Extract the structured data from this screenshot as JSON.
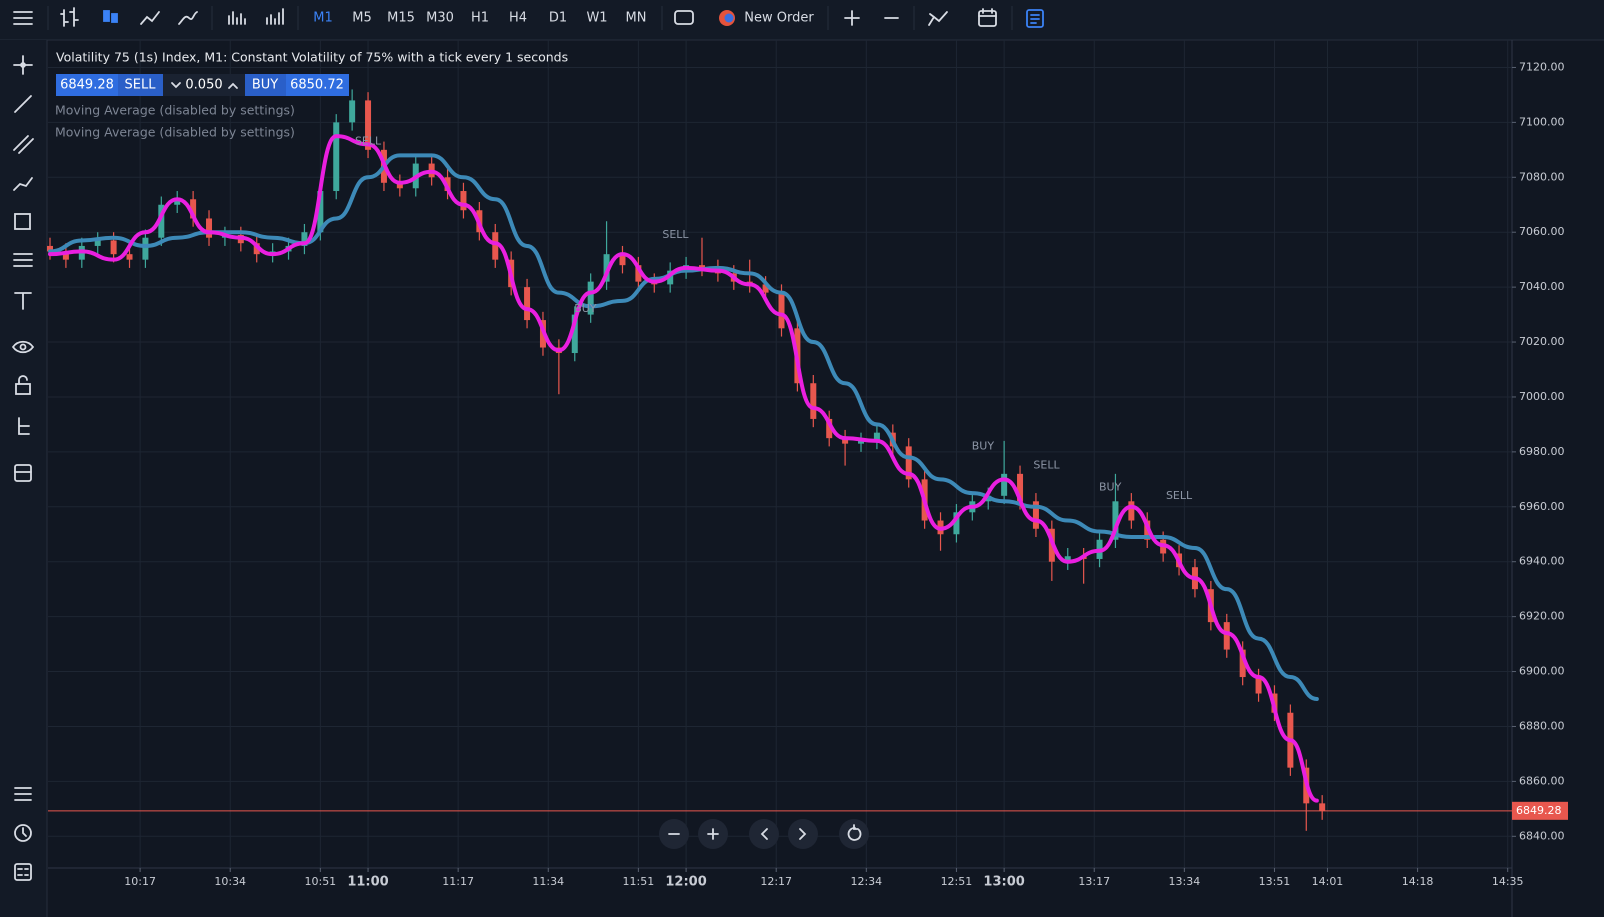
{
  "toolbar": {
    "timeframes": [
      "M1",
      "M5",
      "M15",
      "M30",
      "H1",
      "H4",
      "D1",
      "W1",
      "MN"
    ],
    "active_timeframe": "M1",
    "new_order": "New Order"
  },
  "trade_panel": {
    "sell_price": "6849.28",
    "sell": "SELL",
    "lot": "0.050",
    "buy": "BUY",
    "buy_price": "6850.72"
  },
  "chart_data": {
    "type": "candlestick",
    "title": "Volatility 75 (1s) Index, M1: Constant Volatility of 75% with a tick every 1 seconds",
    "up_color": "#3fa89c",
    "down_color": "#e8574e",
    "grid": true,
    "xlim": [
      "10:00",
      "14:36"
    ],
    "ylim": [
      6827,
      7130
    ],
    "xticks": [
      "10:17",
      "10:34",
      "10:51",
      "11:00",
      "11:17",
      "11:34",
      "11:51",
      "12:00",
      "12:17",
      "12:34",
      "12:51",
      "13:00",
      "13:17",
      "13:34",
      "13:51",
      "14:01",
      "14:18",
      "14:35"
    ],
    "yticks": [
      {
        "value": 6840,
        "label": "6840.00"
      },
      {
        "value": 6860,
        "label": "6860.00"
      },
      {
        "value": 6880,
        "label": "6880.00"
      },
      {
        "value": 6900,
        "label": "6900.00"
      },
      {
        "value": 6920,
        "label": "6920.00"
      },
      {
        "value": 6940,
        "label": "6940.00"
      },
      {
        "value": 6960,
        "label": "6960.00"
      },
      {
        "value": 6980,
        "label": "6980.00"
      },
      {
        "value": 7000,
        "label": "7000.00"
      },
      {
        "value": 7020,
        "label": "7020.00"
      },
      {
        "value": 7040,
        "label": "7040.00"
      },
      {
        "value": 7060,
        "label": "7060.00"
      },
      {
        "value": 7080,
        "label": "7080.00"
      },
      {
        "value": 7100,
        "label": "7100.00"
      },
      {
        "value": 7120,
        "label": "7120.00"
      }
    ],
    "current_price": 6849.28,
    "current_price_color": "#e8574e",
    "x": [
      "10:00",
      "10:03",
      "10:06",
      "10:09",
      "10:12",
      "10:15",
      "10:18",
      "10:21",
      "10:24",
      "10:27",
      "10:30",
      "10:33",
      "10:36",
      "10:39",
      "10:42",
      "10:45",
      "10:48",
      "10:51",
      "10:54",
      "10:57",
      "11:00",
      "11:03",
      "11:06",
      "11:09",
      "11:12",
      "11:15",
      "11:18",
      "11:21",
      "11:24",
      "11:27",
      "11:30",
      "11:33",
      "11:36",
      "11:39",
      "11:42",
      "11:45",
      "11:48",
      "11:51",
      "11:54",
      "11:57",
      "12:00",
      "12:03",
      "12:06",
      "12:09",
      "12:12",
      "12:15",
      "12:18",
      "12:21",
      "12:24",
      "12:27",
      "12:30",
      "12:33",
      "12:36",
      "12:39",
      "12:42",
      "12:45",
      "12:48",
      "12:51",
      "12:54",
      "12:57",
      "13:00",
      "13:03",
      "13:06",
      "13:09",
      "13:12",
      "13:15",
      "13:18",
      "13:21",
      "13:24",
      "13:27",
      "13:30",
      "13:33",
      "13:36",
      "13:39",
      "13:42",
      "13:45",
      "13:48",
      "13:51",
      "13:54",
      "13:57",
      "14:00"
    ],
    "open": [
      7055,
      7053,
      7050,
      7055,
      7057,
      7052,
      7050,
      7058,
      7070,
      7072,
      7065,
      7058,
      7059,
      7056,
      7052,
      7053,
      7055,
      7060,
      7075,
      7100,
      7108,
      7090,
      7078,
      7076,
      7085,
      7080,
      7075,
      7068,
      7060,
      7050,
      7040,
      7028,
      7018,
      7016,
      7030,
      7042,
      7052,
      7048,
      7042,
      7041,
      7046,
      7048,
      7047,
      7045,
      7042,
      7041,
      7038,
      7025,
      7005,
      6992,
      6985,
      6983,
      6984,
      6987,
      6982,
      6970,
      6955,
      6950,
      6958,
      6962,
      6964,
      6972,
      6962,
      6952,
      6940,
      6942,
      6941,
      6948,
      6962,
      6955,
      6948,
      6943,
      6938,
      6930,
      6918,
      6908,
      6898,
      6892,
      6885,
      6865,
      6852
    ],
    "high": [
      7058,
      7056,
      7058,
      7060,
      7060,
      7055,
      7061,
      7073,
      7075,
      7075,
      7068,
      7062,
      7062,
      7059,
      7056,
      7058,
      7063,
      7078,
      7103,
      7112,
      7111,
      7093,
      7081,
      7088,
      7088,
      7083,
      7078,
      7071,
      7063,
      7053,
      7043,
      7031,
      7021,
      7033,
      7045,
      7064,
      7055,
      7051,
      7045,
      7049,
      7051,
      7058,
      7050,
      7048,
      7050,
      7044,
      7041,
      7028,
      7008,
      6995,
      6988,
      6987,
      6990,
      6990,
      6985,
      6973,
      6958,
      6961,
      6965,
      6967,
      6984,
      6975,
      6965,
      6955,
      6945,
      6945,
      6951,
      6972,
      6965,
      6958,
      6951,
      6946,
      6941,
      6933,
      6921,
      6911,
      6901,
      6895,
      6888,
      6868,
      6855
    ],
    "low": [
      7050,
      7047,
      7047,
      7052,
      7049,
      7047,
      7047,
      7055,
      7067,
      7062,
      7055,
      7055,
      7053,
      7049,
      7049,
      7050,
      7052,
      7057,
      7072,
      7097,
      7087,
      7075,
      7073,
      7073,
      7077,
      7072,
      7065,
      7057,
      7047,
      7037,
      7025,
      7015,
      7001,
      7013,
      7027,
      7039,
      7045,
      7039,
      7038,
      7038,
      7043,
      7044,
      7042,
      7039,
      7038,
      7035,
      7022,
      7002,
      6989,
      6982,
      6975,
      6980,
      6981,
      6979,
      6967,
      6952,
      6944,
      6947,
      6955,
      6959,
      6961,
      6959,
      6949,
      6933,
      6937,
      6932,
      6938,
      6945,
      6952,
      6945,
      6940,
      6935,
      6927,
      6915,
      6905,
      6895,
      6889,
      6882,
      6862,
      6842,
      6846
    ],
    "close": [
      7053,
      7050,
      7055,
      7057,
      7052,
      7050,
      7058,
      7070,
      7072,
      7065,
      7058,
      7059,
      7056,
      7052,
      7053,
      7055,
      7060,
      7075,
      7100,
      7108,
      7090,
      7078,
      7076,
      7085,
      7080,
      7075,
      7068,
      7060,
      7050,
      7040,
      7028,
      7018,
      7016,
      7030,
      7042,
      7052,
      7048,
      7042,
      7041,
      7046,
      7048,
      7047,
      7045,
      7042,
      7041,
      7038,
      7025,
      7005,
      6992,
      6985,
      6983,
      6984,
      6987,
      6982,
      6970,
      6955,
      6950,
      6958,
      6962,
      6964,
      6972,
      6962,
      6952,
      6940,
      6942,
      6941,
      6948,
      6962,
      6955,
      6948,
      6943,
      6938,
      6930,
      6918,
      6908,
      6898,
      6892,
      6885,
      6865,
      6852,
      6849.28
    ],
    "series": [
      {
        "name": "Moving Average (disabled by settings)",
        "color": "#3d8ab8",
        "x": [
          "10:00",
          "10:06",
          "10:12",
          "10:18",
          "10:24",
          "10:30",
          "10:36",
          "10:42",
          "10:48",
          "10:54",
          "11:00",
          "11:06",
          "11:12",
          "11:18",
          "11:24",
          "11:30",
          "11:36",
          "11:42",
          "11:48",
          "11:54",
          "12:00",
          "12:06",
          "12:12",
          "12:18",
          "12:24",
          "12:30",
          "12:36",
          "12:42",
          "12:48",
          "12:54",
          "13:00",
          "13:06",
          "13:12",
          "13:18",
          "13:24",
          "13:30",
          "13:36",
          "13:42",
          "13:48",
          "13:54",
          "13:59"
        ],
        "values": [
          7053,
          7057,
          7058,
          7055,
          7058,
          7060,
          7060,
          7058,
          7056,
          7065,
          7080,
          7088,
          7088,
          7080,
          7072,
          7055,
          7038,
          7033,
          7035,
          7043,
          7046,
          7047,
          7045,
          7038,
          7020,
          7005,
          6990,
          6978,
          6970,
          6965,
          6962,
          6960,
          6955,
          6951,
          6949,
          6949,
          6945,
          6930,
          6912,
          6898,
          6890
        ]
      },
      {
        "name": "Moving Average (disabled by settings)",
        "color": "#ea1fe0",
        "x": [
          "10:00",
          "10:06",
          "10:12",
          "10:18",
          "10:24",
          "10:30",
          "10:36",
          "10:42",
          "10:48",
          "10:54",
          "11:00",
          "11:06",
          "11:12",
          "11:18",
          "11:24",
          "11:30",
          "11:36",
          "11:42",
          "11:48",
          "11:54",
          "12:00",
          "12:06",
          "12:12",
          "12:18",
          "12:24",
          "12:30",
          "12:36",
          "12:42",
          "12:48",
          "12:54",
          "13:00",
          "13:06",
          "13:12",
          "13:18",
          "13:24",
          "13:30",
          "13:36",
          "13:42",
          "13:48",
          "13:54",
          "13:59"
        ],
        "values": [
          7052,
          7053,
          7050,
          7060,
          7072,
          7060,
          7058,
          7052,
          7056,
          7095,
          7092,
          7078,
          7082,
          7070,
          7056,
          7032,
          7017,
          7038,
          7052,
          7042,
          7047,
          7046,
          7041,
          7030,
          6996,
          6985,
          6984,
          6972,
          6952,
          6960,
          6970,
          6955,
          6940,
          6944,
          6960,
          6946,
          6934,
          6914,
          6898,
          6875,
          6853
        ]
      }
    ],
    "annotations": [
      {
        "text": "SELL",
        "x": "11:00",
        "y": 7093
      },
      {
        "text": "BUY",
        "x": "11:41",
        "y": 7032
      },
      {
        "text": "SELL",
        "x": "11:58",
        "y": 7059
      },
      {
        "text": "BUY",
        "x": "12:56",
        "y": 6982
      },
      {
        "text": "SELL",
        "x": "13:08",
        "y": 6975
      },
      {
        "text": "BUY",
        "x": "13:20",
        "y": 6967
      },
      {
        "text": "SELL",
        "x": "13:33",
        "y": 6964
      }
    ]
  }
}
